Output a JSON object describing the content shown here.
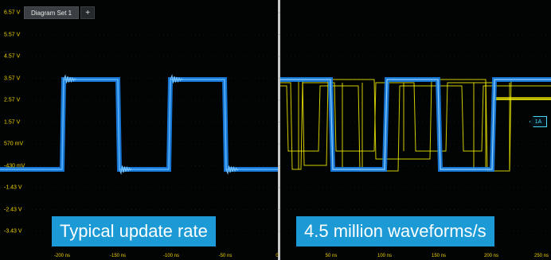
{
  "toolbar": {
    "tab_label": "Diagram Set 1",
    "add_tab": "+"
  },
  "y_axis": {
    "labels": [
      "6.57 V",
      "5.57 V",
      "4.57 V",
      "3.57 V",
      "2.57 V",
      "1.57 V",
      "570 mV",
      "-430 mV",
      "-1.43 V",
      "-2.43 V",
      "-3.43 V"
    ]
  },
  "x_axis": {
    "left_labels": [
      "-200 ns",
      "-150 ns",
      "-100 ns",
      "-50 ns"
    ],
    "right_labels": [
      "0",
      "50 ns",
      "100 ns",
      "150 ns",
      "200 ns",
      "250 ns"
    ]
  },
  "captions": {
    "left": "Typical update rate",
    "right": "4.5 million waveforms/s"
  },
  "trigger_marker": "1A",
  "colors": {
    "waveform_blue": "#1a83ea",
    "waveform_yellow": "#f4f000",
    "caption_bg": "#1b9ad6",
    "axis_label": "#f2d400",
    "grid": "#14363a"
  }
}
